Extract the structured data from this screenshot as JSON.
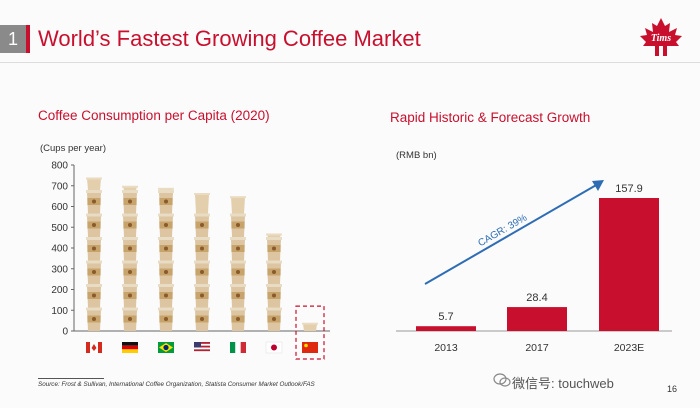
{
  "slide": {
    "number": "1",
    "title": "World’s Fastest Growing Coffee Market",
    "logo_text": "Tims",
    "brand_color": "#c8102e",
    "source": "Source: Frost & Sullivan, International Coffee Organization, Statista Consumer Market Outlook/FAS",
    "page_number": "16",
    "watermark": "微信号: touchweb"
  },
  "chart_data": [
    {
      "type": "bar",
      "title": "Coffee Consumption per Capita (2020)",
      "ylabel": "(Cups per year)",
      "ylim": [
        0,
        800
      ],
      "yticks": [
        0,
        100,
        200,
        300,
        400,
        500,
        600,
        700,
        800
      ],
      "categories": [
        "Canada",
        "Germany",
        "Brazil",
        "United States",
        "Italy",
        "Japan",
        "China"
      ],
      "category_icons": [
        "canada-flag",
        "germany-flag",
        "brazil-flag",
        "usa-flag",
        "italy-flag",
        "japan-flag",
        "china-flag"
      ],
      "values": [
        740,
        700,
        690,
        665,
        650,
        470,
        40
      ],
      "highlight": "China",
      "bar_style": "stacked coffee cups",
      "grid": false
    },
    {
      "type": "bar",
      "title": "Rapid Historic & Forecast Growth",
      "ylabel": "(RMB bn)",
      "categories": [
        "2013",
        "2017",
        "2023E"
      ],
      "values": [
        5.7,
        28.4,
        157.9
      ],
      "value_labels": [
        "5.7",
        "28.4",
        "157.9"
      ],
      "bar_color": "#c8102e",
      "annotation": "CAGR: 39%",
      "annotation_color": "#2e6db4",
      "grid": false
    }
  ]
}
